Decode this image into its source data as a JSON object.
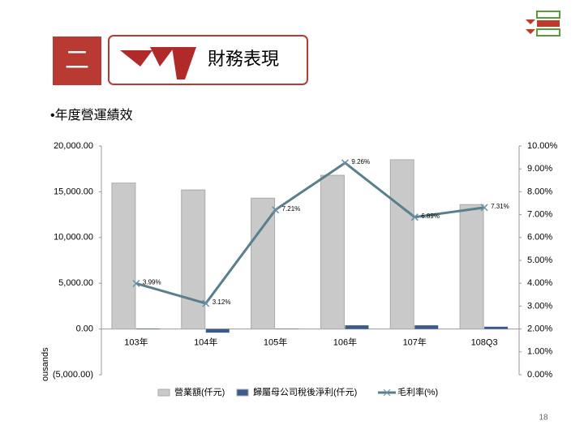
{
  "header": {
    "section_number": "二",
    "title": "財務表現",
    "bullet": "•年度營運績效"
  },
  "page_number": "18",
  "chart_data": {
    "type": "bar-line",
    "y_label": "ousands",
    "categories": [
      "103年",
      "104年",
      "105年",
      "106年",
      "107年",
      "108Q3"
    ],
    "series": [
      {
        "name": "營業額(仟元)",
        "type": "bar",
        "color": "#c9c9c9",
        "values": [
          15950,
          15200,
          14300,
          16800,
          18500,
          13600
        ]
      },
      {
        "name": "歸屬母公司稅後淨利(仟元)",
        "type": "bar",
        "color": "#3c5b8c",
        "values": [
          50,
          -400,
          30,
          400,
          400,
          250
        ]
      },
      {
        "name": "毛利率(%)",
        "type": "line",
        "axis": "y2",
        "color": "#5a7f8c",
        "values": [
          3.99,
          3.12,
          7.21,
          9.26,
          6.89,
          7.31
        ],
        "value_labels": [
          "3.99%",
          "3.12%",
          "7.21%",
          "9.26%",
          "6.89%",
          "7.31%"
        ]
      }
    ],
    "ylim": [
      -5000,
      20000
    ],
    "yticks": [
      {
        "value": -5000,
        "label": "(5,000.00)"
      },
      {
        "value": 0,
        "label": "0.00"
      },
      {
        "value": 5000,
        "label": "5,000.00"
      },
      {
        "value": 10000,
        "label": "10,000.00"
      },
      {
        "value": 15000,
        "label": "15,000.00"
      },
      {
        "value": 20000,
        "label": "20,000.00"
      }
    ],
    "y2lim": [
      0,
      10
    ],
    "y2ticks": [
      {
        "value": 0,
        "label": "0.00%"
      },
      {
        "value": 1,
        "label": "1.00%"
      },
      {
        "value": 2,
        "label": "2.00%"
      },
      {
        "value": 3,
        "label": "3.00%"
      },
      {
        "value": 4,
        "label": "4.00%"
      },
      {
        "value": 5,
        "label": "5.00%"
      },
      {
        "value": 6,
        "label": "6.00%"
      },
      {
        "value": 7,
        "label": "7.00%"
      },
      {
        "value": 8,
        "label": "8.00%"
      },
      {
        "value": 9,
        "label": "9.00%"
      },
      {
        "value": 10,
        "label": "10.00%"
      }
    ],
    "grid": false,
    "legend": "bottom"
  }
}
